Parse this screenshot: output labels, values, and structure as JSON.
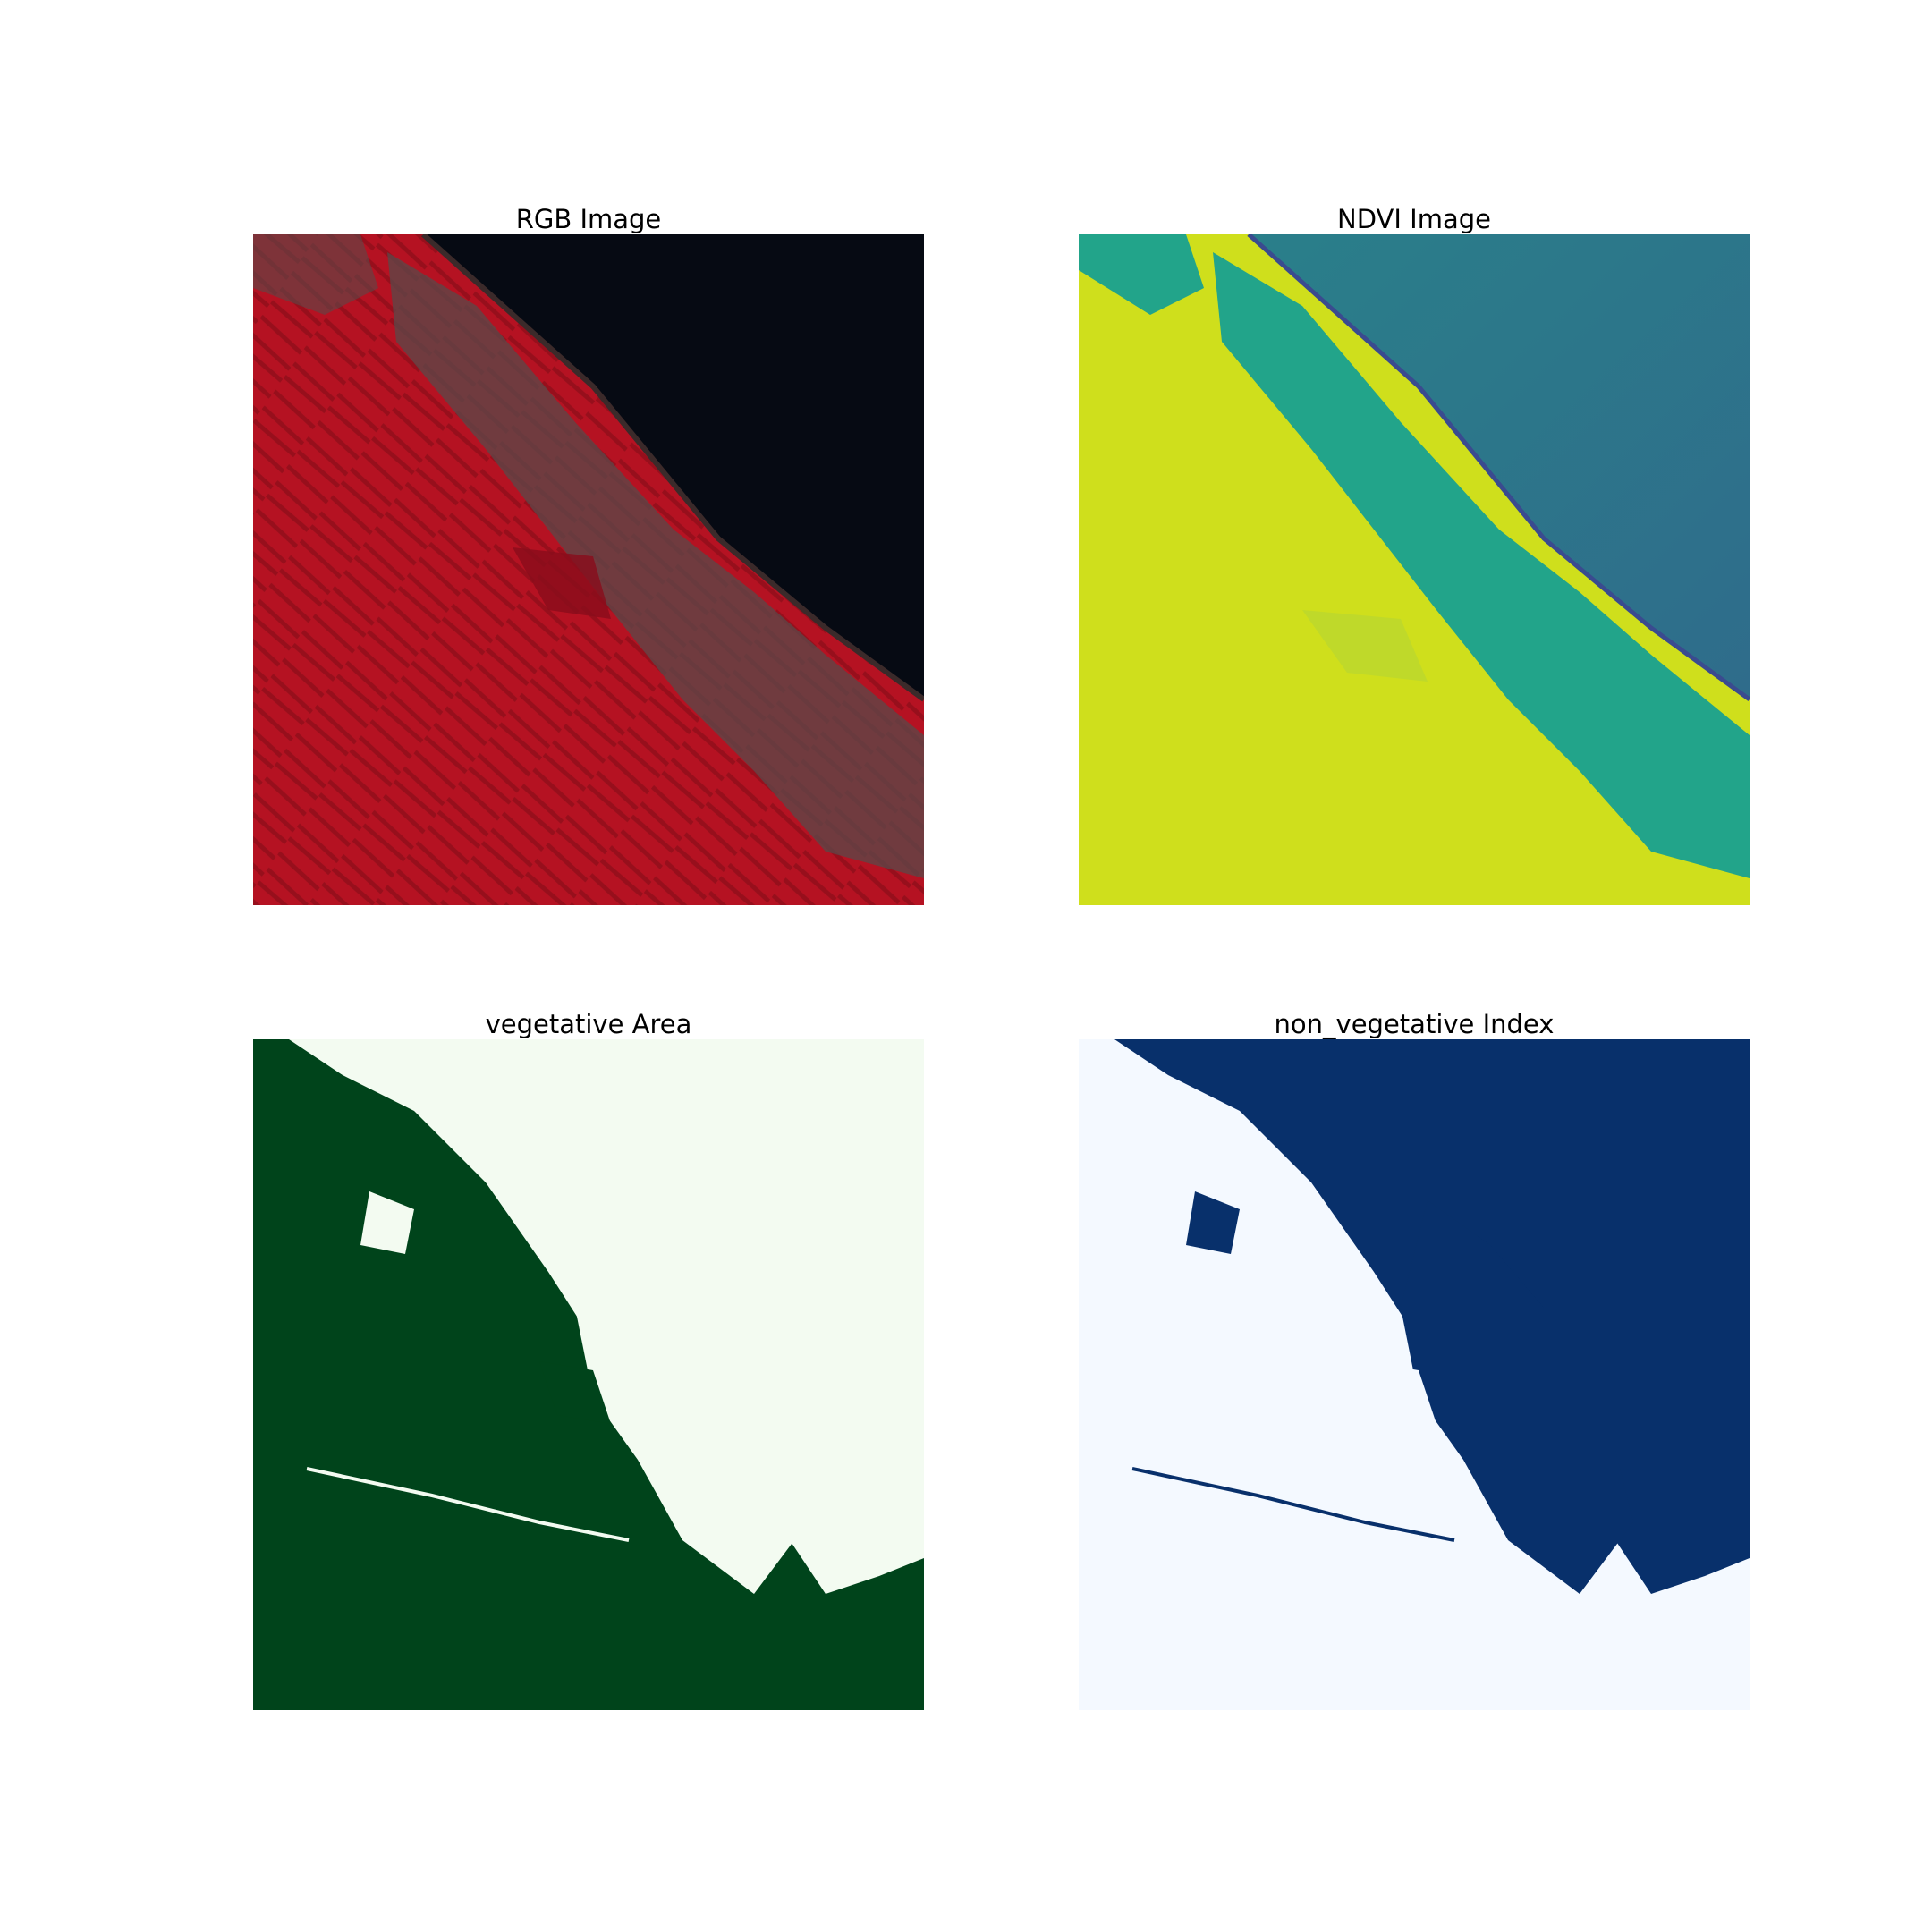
{
  "figure": {
    "panels": [
      {
        "title": "RGB Image"
      },
      {
        "title": "NDVI Image"
      },
      {
        "title": "vegetative Area"
      },
      {
        "title": "non_vegetative Index"
      }
    ]
  },
  "colors": {
    "land_red": "#b51222",
    "land_red_dark": "#7e0c17",
    "urban_grey": "#5a4a4a",
    "sea_dark": "#060a13",
    "ndvi_high": "#cfdf1c",
    "ndvi_mid": "#22a48a",
    "ndvi_low": "#1f7a82",
    "ndvi_sea": "#2f6c8b",
    "veg_green": "#00441b",
    "veg_light": "#f3fbf1",
    "nonveg_blue": "#08306b",
    "nonveg_light": "#f4f9ff"
  }
}
